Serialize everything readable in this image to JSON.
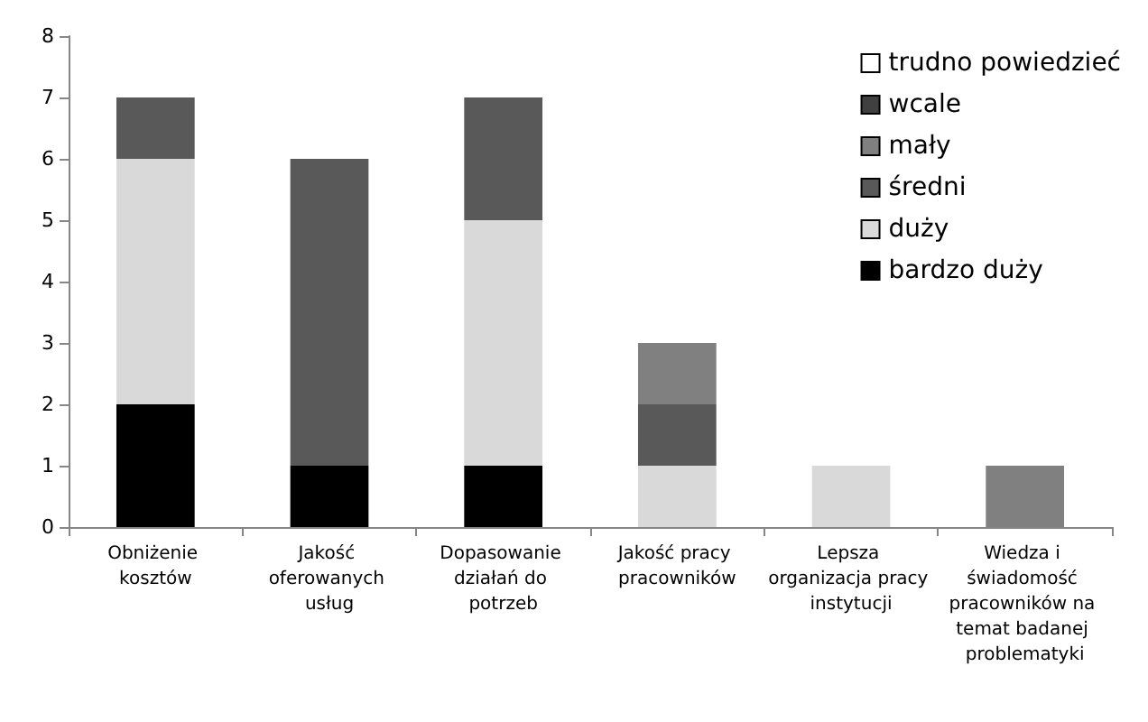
{
  "chart_data": {
    "type": "bar",
    "stacked": true,
    "categories": [
      "Obniżenie kosztów",
      "Jakość oferowanych usług",
      "Dopasowanie działań do potrzeb",
      "Jakość pracy pracowników",
      "Lepsza organizacja pracy instytucji",
      "Wiedza i świadomość pracowników na temat badanej problematyki"
    ],
    "series": [
      {
        "name": "bardzo duży",
        "color": "#000000",
        "values": [
          2,
          1,
          1,
          null,
          null,
          null
        ]
      },
      {
        "name": "duży",
        "color": "#d9d9d9",
        "values": [
          4,
          null,
          4,
          1,
          1,
          null
        ]
      },
      {
        "name": "średni",
        "color": "#595959",
        "values": [
          1,
          5,
          2,
          1,
          null,
          null
        ]
      },
      {
        "name": "mały",
        "color": "#808080",
        "values": [
          null,
          null,
          null,
          1,
          null,
          1
        ]
      },
      {
        "name": "wcale",
        "color": "#404040",
        "values": [
          null,
          null,
          null,
          null,
          null,
          null
        ]
      },
      {
        "name": "trudno powiedzieć",
        "color": "#ffffff",
        "values": [
          null,
          null,
          null,
          null,
          null,
          null
        ]
      }
    ],
    "ylim": [
      0,
      8
    ],
    "yticks": [
      0,
      1,
      2,
      3,
      4,
      5,
      6,
      7,
      8
    ],
    "grid": false,
    "legend": "top right"
  }
}
